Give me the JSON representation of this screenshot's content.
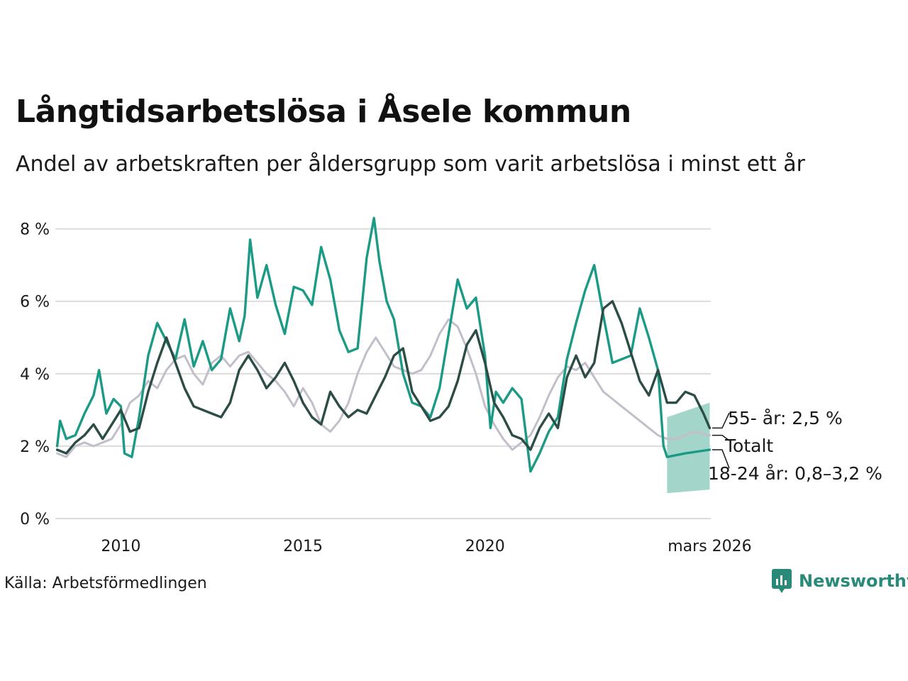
{
  "title": "Långtidsarbetslösa i Åsele kommun",
  "subtitle": "Andel av arbetskraften per åldersgrupp som varit arbetslösa i minst ett år",
  "source": "Källa: Arbetsförmedlingen",
  "brand": "Newsworthy",
  "colors": {
    "young": "#1b9a86",
    "old": "#2c4c46",
    "total": "#c2bfca",
    "band": "#9fd3c7",
    "grid": "#dcdcdc",
    "brand": "#2a8a7a"
  },
  "chart_data": {
    "type": "line",
    "x_unit": "year (decimal)",
    "xlim": [
      2008.2,
      2026.2
    ],
    "ylim": [
      0,
      8.6
    ],
    "y_ticks": [
      0,
      2,
      4,
      6,
      8
    ],
    "y_tick_labels": [
      "0 %",
      "2 %",
      "4 %",
      "6 %",
      "8 %"
    ],
    "x_ticks": [
      2010,
      2015,
      2020,
      2026.17
    ],
    "x_tick_labels": [
      "2010",
      "2015",
      "2020",
      "mars 2026"
    ],
    "grid": true,
    "series": [
      {
        "name": "Totalt",
        "label": "Totalt",
        "key": "total",
        "points": [
          [
            2008.25,
            1.8
          ],
          [
            2008.5,
            1.7
          ],
          [
            2008.75,
            2.0
          ],
          [
            2009.0,
            2.1
          ],
          [
            2009.25,
            2.0
          ],
          [
            2009.5,
            2.1
          ],
          [
            2009.75,
            2.2
          ],
          [
            2010.0,
            2.6
          ],
          [
            2010.25,
            3.2
          ],
          [
            2010.5,
            3.4
          ],
          [
            2010.75,
            3.8
          ],
          [
            2011.0,
            3.6
          ],
          [
            2011.25,
            4.1
          ],
          [
            2011.5,
            4.4
          ],
          [
            2011.75,
            4.5
          ],
          [
            2012.0,
            4.0
          ],
          [
            2012.25,
            3.7
          ],
          [
            2012.5,
            4.3
          ],
          [
            2012.75,
            4.5
          ],
          [
            2013.0,
            4.2
          ],
          [
            2013.25,
            4.5
          ],
          [
            2013.5,
            4.6
          ],
          [
            2013.75,
            4.3
          ],
          [
            2014.0,
            4.0
          ],
          [
            2014.25,
            3.8
          ],
          [
            2014.5,
            3.5
          ],
          [
            2014.75,
            3.1
          ],
          [
            2015.0,
            3.6
          ],
          [
            2015.25,
            3.2
          ],
          [
            2015.5,
            2.6
          ],
          [
            2015.75,
            2.4
          ],
          [
            2016.0,
            2.7
          ],
          [
            2016.25,
            3.2
          ],
          [
            2016.5,
            4.0
          ],
          [
            2016.75,
            4.6
          ],
          [
            2017.0,
            5.0
          ],
          [
            2017.25,
            4.6
          ],
          [
            2017.5,
            4.2
          ],
          [
            2017.75,
            4.1
          ],
          [
            2018.0,
            4.0
          ],
          [
            2018.25,
            4.1
          ],
          [
            2018.5,
            4.5
          ],
          [
            2018.75,
            5.1
          ],
          [
            2019.0,
            5.5
          ],
          [
            2019.25,
            5.3
          ],
          [
            2019.5,
            4.7
          ],
          [
            2019.75,
            4.0
          ],
          [
            2020.0,
            3.1
          ],
          [
            2020.25,
            2.6
          ],
          [
            2020.5,
            2.2
          ],
          [
            2020.75,
            1.9
          ],
          [
            2021.0,
            2.1
          ],
          [
            2021.25,
            2.3
          ],
          [
            2021.5,
            2.8
          ],
          [
            2021.75,
            3.4
          ],
          [
            2022.0,
            3.9
          ],
          [
            2022.25,
            4.2
          ],
          [
            2022.5,
            4.1
          ],
          [
            2022.75,
            4.3
          ],
          [
            2023.0,
            3.9
          ],
          [
            2023.25,
            3.5
          ],
          [
            2023.5,
            3.3
          ],
          [
            2023.75,
            3.1
          ],
          [
            2024.0,
            2.9
          ],
          [
            2024.25,
            2.7
          ],
          [
            2024.5,
            2.5
          ],
          [
            2024.75,
            2.3
          ],
          [
            2025.0,
            2.2
          ],
          [
            2025.25,
            2.2
          ],
          [
            2025.5,
            2.3
          ],
          [
            2025.75,
            2.4
          ],
          [
            2026.17,
            2.3
          ]
        ]
      },
      {
        "name": "18-24 år",
        "label": "18-24 år: 0,8–3,2 %",
        "key": "young",
        "points": [
          [
            2008.25,
            2.0
          ],
          [
            2008.33,
            2.7
          ],
          [
            2008.5,
            2.2
          ],
          [
            2008.75,
            2.3
          ],
          [
            2009.0,
            2.9
          ],
          [
            2009.25,
            3.4
          ],
          [
            2009.4,
            4.1
          ],
          [
            2009.6,
            2.9
          ],
          [
            2009.8,
            3.3
          ],
          [
            2010.0,
            3.1
          ],
          [
            2010.1,
            1.8
          ],
          [
            2010.3,
            1.7
          ],
          [
            2010.5,
            2.8
          ],
          [
            2010.75,
            4.5
          ],
          [
            2011.0,
            5.4
          ],
          [
            2011.25,
            4.9
          ],
          [
            2011.5,
            4.4
          ],
          [
            2011.75,
            5.5
          ],
          [
            2012.0,
            4.2
          ],
          [
            2012.25,
            4.9
          ],
          [
            2012.5,
            4.1
          ],
          [
            2012.75,
            4.4
          ],
          [
            2013.0,
            5.8
          ],
          [
            2013.25,
            4.9
          ],
          [
            2013.4,
            5.6
          ],
          [
            2013.55,
            7.7
          ],
          [
            2013.75,
            6.1
          ],
          [
            2014.0,
            7.0
          ],
          [
            2014.25,
            5.9
          ],
          [
            2014.5,
            5.1
          ],
          [
            2014.75,
            6.4
          ],
          [
            2015.0,
            6.3
          ],
          [
            2015.25,
            5.9
          ],
          [
            2015.5,
            7.5
          ],
          [
            2015.75,
            6.6
          ],
          [
            2016.0,
            5.2
          ],
          [
            2016.25,
            4.6
          ],
          [
            2016.5,
            4.7
          ],
          [
            2016.75,
            7.2
          ],
          [
            2016.95,
            8.3
          ],
          [
            2017.1,
            7.1
          ],
          [
            2017.3,
            6.0
          ],
          [
            2017.5,
            5.5
          ],
          [
            2017.75,
            4.0
          ],
          [
            2018.0,
            3.2
          ],
          [
            2018.25,
            3.1
          ],
          [
            2018.5,
            2.8
          ],
          [
            2018.75,
            3.6
          ],
          [
            2019.0,
            5.1
          ],
          [
            2019.25,
            6.6
          ],
          [
            2019.5,
            5.8
          ],
          [
            2019.75,
            6.1
          ],
          [
            2020.0,
            4.5
          ],
          [
            2020.15,
            2.5
          ],
          [
            2020.3,
            3.5
          ],
          [
            2020.5,
            3.2
          ],
          [
            2020.75,
            3.6
          ],
          [
            2021.0,
            3.3
          ],
          [
            2021.25,
            1.3
          ],
          [
            2021.5,
            1.8
          ],
          [
            2021.75,
            2.4
          ],
          [
            2022.0,
            2.8
          ],
          [
            2022.25,
            4.4
          ],
          [
            2022.5,
            5.4
          ],
          [
            2022.75,
            6.3
          ],
          [
            2023.0,
            7.0
          ],
          [
            2023.25,
            5.6
          ],
          [
            2023.5,
            4.3
          ],
          [
            2023.75,
            4.4
          ],
          [
            2024.0,
            4.5
          ],
          [
            2024.25,
            5.8
          ],
          [
            2024.5,
            5.0
          ],
          [
            2024.75,
            4.1
          ],
          [
            2024.9,
            2.0
          ],
          [
            2025.0,
            1.7
          ],
          [
            2025.5,
            1.8
          ],
          [
            2026.17,
            1.9
          ]
        ],
        "interval": {
          "from": 2025.0,
          "to": 2026.17,
          "low_start": 0.7,
          "low_end": 0.8,
          "high_start": 2.8,
          "high_end": 3.2
        }
      },
      {
        "name": "55- år",
        "label": "55- år: 2,5 %",
        "key": "old",
        "points": [
          [
            2008.25,
            1.9
          ],
          [
            2008.5,
            1.8
          ],
          [
            2008.75,
            2.1
          ],
          [
            2009.0,
            2.3
          ],
          [
            2009.25,
            2.6
          ],
          [
            2009.5,
            2.2
          ],
          [
            2009.75,
            2.6
          ],
          [
            2010.0,
            3.0
          ],
          [
            2010.25,
            2.4
          ],
          [
            2010.5,
            2.5
          ],
          [
            2010.75,
            3.5
          ],
          [
            2011.0,
            4.3
          ],
          [
            2011.25,
            5.0
          ],
          [
            2011.5,
            4.3
          ],
          [
            2011.75,
            3.6
          ],
          [
            2012.0,
            3.1
          ],
          [
            2012.25,
            3.0
          ],
          [
            2012.5,
            2.9
          ],
          [
            2012.75,
            2.8
          ],
          [
            2013.0,
            3.2
          ],
          [
            2013.25,
            4.1
          ],
          [
            2013.5,
            4.5
          ],
          [
            2013.75,
            4.1
          ],
          [
            2014.0,
            3.6
          ],
          [
            2014.25,
            3.9
          ],
          [
            2014.5,
            4.3
          ],
          [
            2014.75,
            3.8
          ],
          [
            2015.0,
            3.2
          ],
          [
            2015.25,
            2.8
          ],
          [
            2015.5,
            2.6
          ],
          [
            2015.75,
            3.5
          ],
          [
            2016.0,
            3.1
          ],
          [
            2016.25,
            2.8
          ],
          [
            2016.5,
            3.0
          ],
          [
            2016.75,
            2.9
          ],
          [
            2017.0,
            3.4
          ],
          [
            2017.25,
            3.9
          ],
          [
            2017.5,
            4.5
          ],
          [
            2017.75,
            4.7
          ],
          [
            2018.0,
            3.5
          ],
          [
            2018.25,
            3.1
          ],
          [
            2018.5,
            2.7
          ],
          [
            2018.75,
            2.8
          ],
          [
            2019.0,
            3.1
          ],
          [
            2019.25,
            3.8
          ],
          [
            2019.5,
            4.8
          ],
          [
            2019.75,
            5.2
          ],
          [
            2020.0,
            4.3
          ],
          [
            2020.25,
            3.2
          ],
          [
            2020.5,
            2.8
          ],
          [
            2020.75,
            2.3
          ],
          [
            2021.0,
            2.2
          ],
          [
            2021.25,
            1.9
          ],
          [
            2021.5,
            2.5
          ],
          [
            2021.75,
            2.9
          ],
          [
            2022.0,
            2.5
          ],
          [
            2022.25,
            3.9
          ],
          [
            2022.5,
            4.5
          ],
          [
            2022.75,
            3.9
          ],
          [
            2023.0,
            4.3
          ],
          [
            2023.25,
            5.8
          ],
          [
            2023.5,
            6.0
          ],
          [
            2023.75,
            5.4
          ],
          [
            2024.0,
            4.6
          ],
          [
            2024.25,
            3.8
          ],
          [
            2024.5,
            3.4
          ],
          [
            2024.75,
            4.1
          ],
          [
            2025.0,
            3.2
          ],
          [
            2025.25,
            3.2
          ],
          [
            2025.5,
            3.5
          ],
          [
            2025.75,
            3.4
          ],
          [
            2026.0,
            2.9
          ],
          [
            2026.17,
            2.5
          ]
        ]
      }
    ]
  }
}
